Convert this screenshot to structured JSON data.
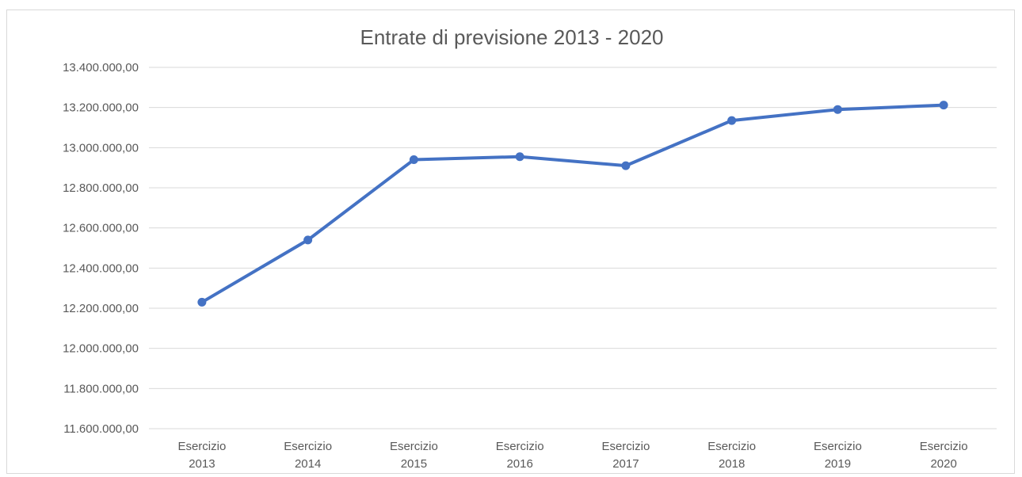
{
  "chart_data": {
    "type": "line",
    "title": "Entrate di previsione 2013 - 2020",
    "categories": [
      [
        "Esercizio",
        "2013"
      ],
      [
        "Esercizio",
        "2014"
      ],
      [
        "Esercizio",
        "2015"
      ],
      [
        "Esercizio",
        "2016"
      ],
      [
        "Esercizio",
        "2017"
      ],
      [
        "Esercizio",
        "2018"
      ],
      [
        "Esercizio",
        "2019"
      ],
      [
        "Esercizio",
        "2020"
      ]
    ],
    "series": [
      {
        "values": [
          12230000,
          12540000,
          12940000,
          12955000,
          12910000,
          13135000,
          13190000,
          13212000
        ]
      }
    ],
    "ylim": [
      11600000,
      13400000
    ],
    "ytick_step": 200000,
    "ytick_labels": [
      "11.600.000,00",
      "11.800.000,00",
      "12.000.000,00",
      "12.200.000,00",
      "12.400.000,00",
      "12.600.000,00",
      "12.800.000,00",
      "13.000.000,00",
      "13.200.000,00",
      "13.400.000,00"
    ],
    "grid": true,
    "color": "#4472c4",
    "xlabel": "",
    "ylabel": ""
  }
}
